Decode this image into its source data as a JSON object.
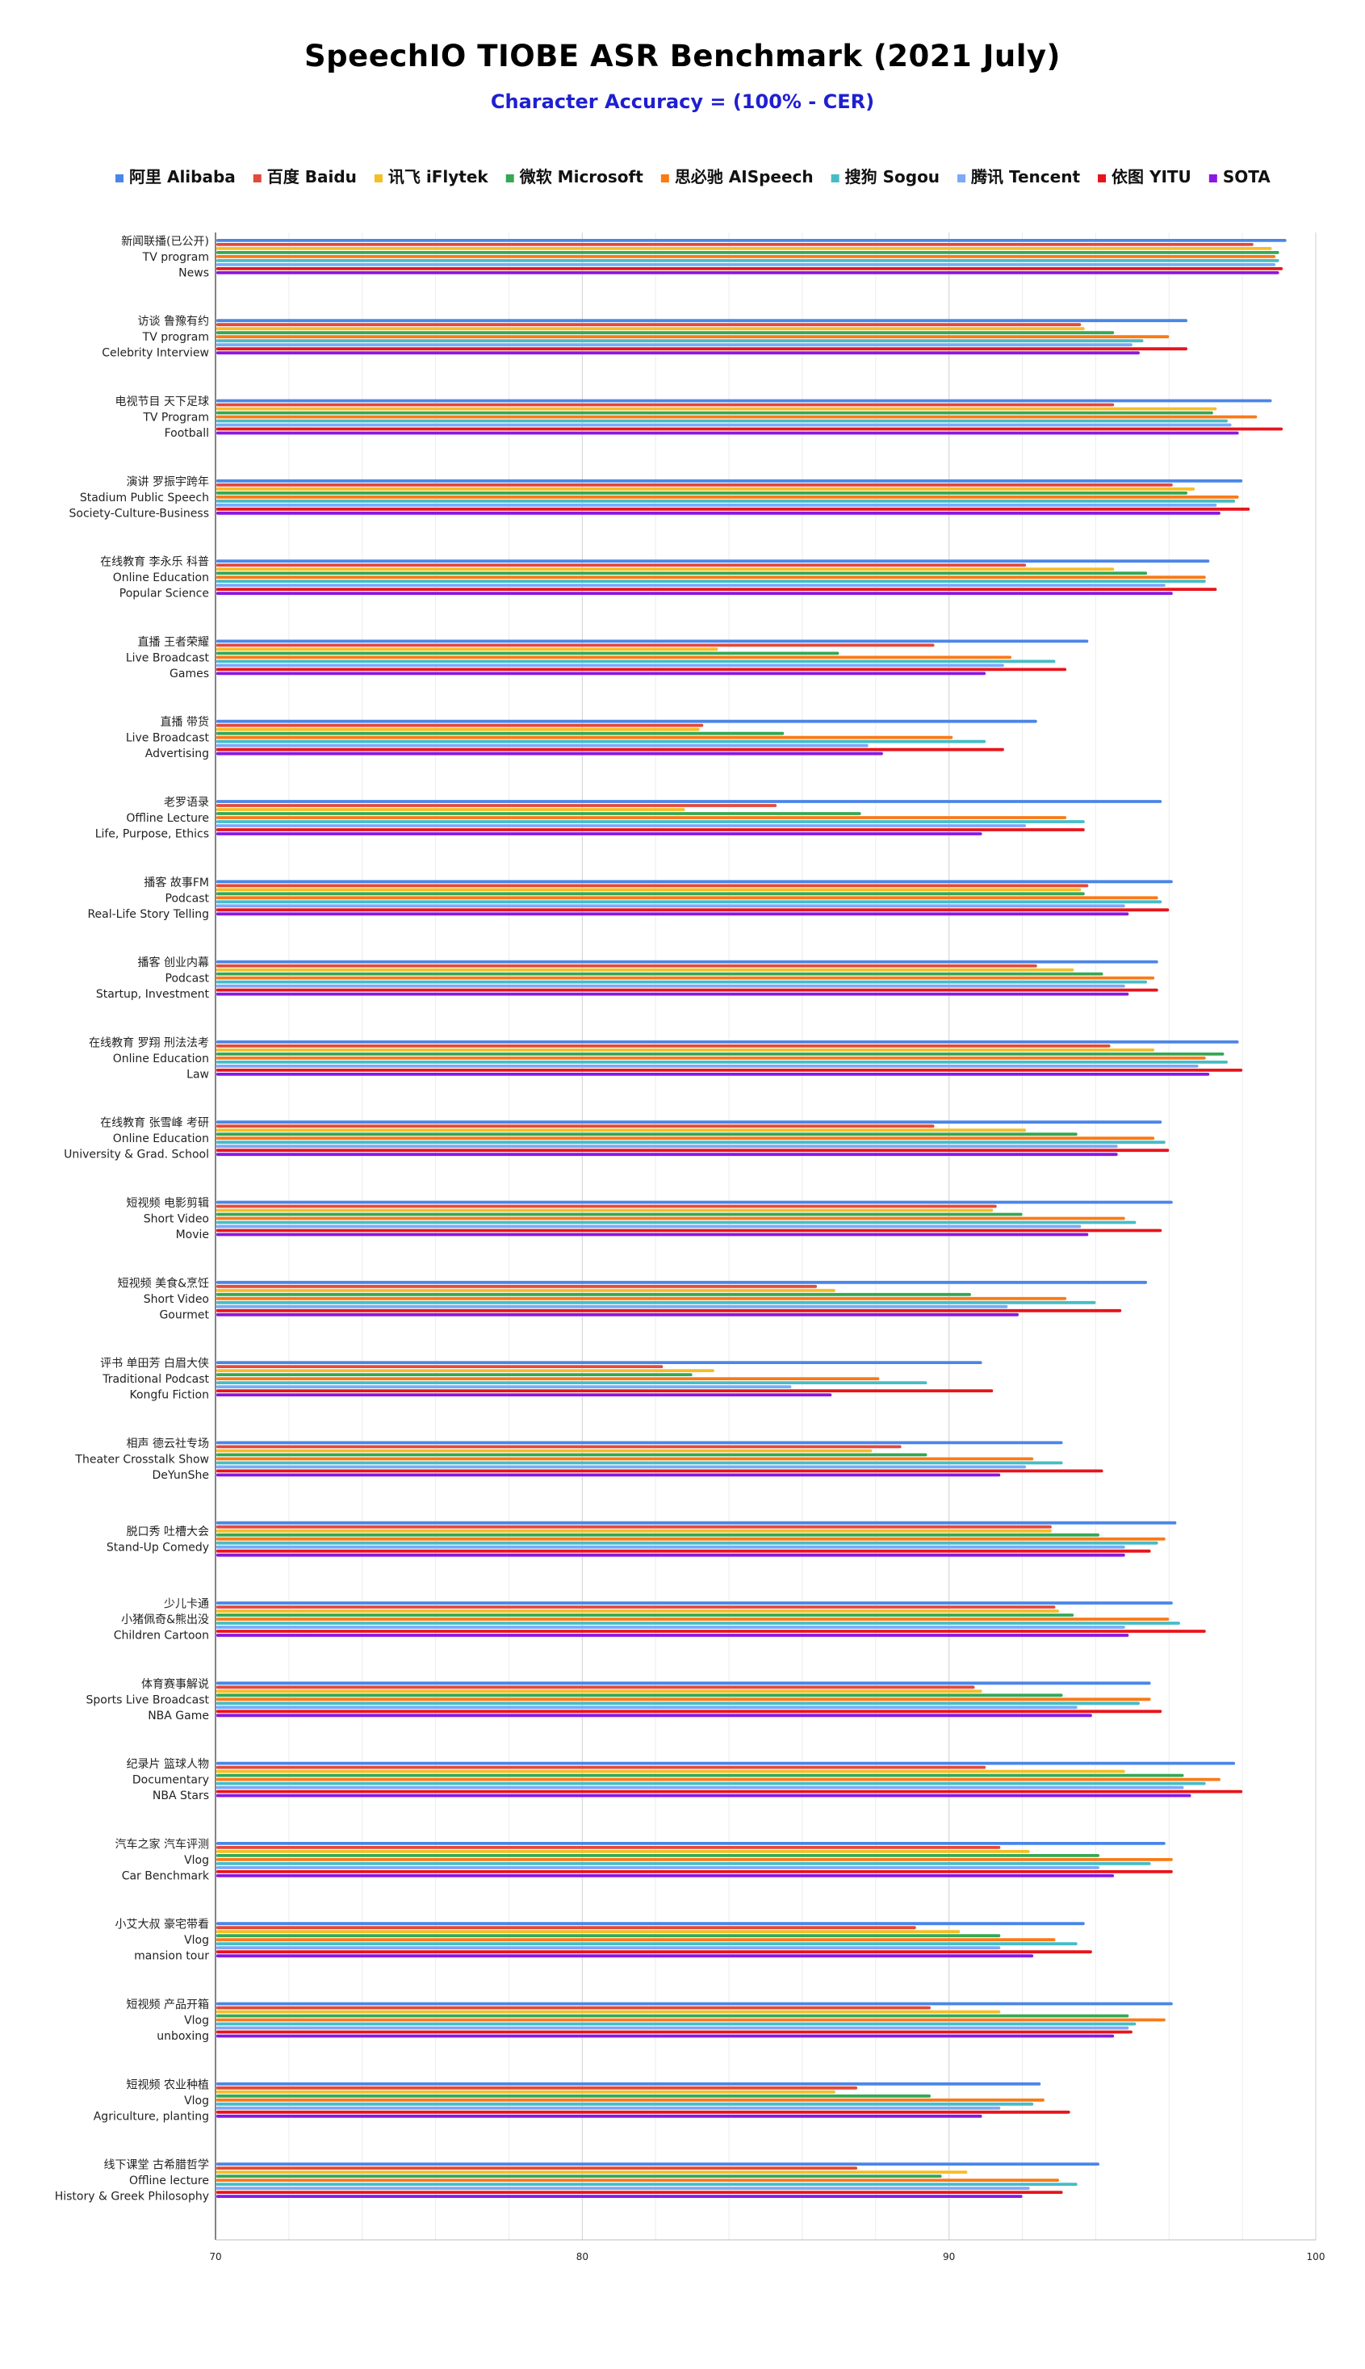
{
  "chart_data": {
    "type": "bar",
    "orientation": "horizontal",
    "title": "SpeechIO TIOBE ASR Benchmark (2021 July)",
    "subtitle": "Character Accuracy = (100% - CER)",
    "xlim": [
      70,
      100
    ],
    "xticks": [
      "70",
      "80",
      "90",
      "100"
    ],
    "grid": true,
    "legend_position": "top",
    "series": [
      {
        "name": "阿里 Alibaba",
        "color": "#4a86e8"
      },
      {
        "name": "百度 Baidu",
        "color": "#e24a3b"
      },
      {
        "name": "讯飞 iFlytek",
        "color": "#f6be26"
      },
      {
        "name": "微软 Microsoft",
        "color": "#34a853"
      },
      {
        "name": "思必驰 AISpeech",
        "color": "#fa7a16"
      },
      {
        "name": "搜狗 Sogou",
        "color": "#46bdc6"
      },
      {
        "name": "腾讯 Tencent",
        "color": "#7baaf7"
      },
      {
        "name": "依图 YITU",
        "color": "#e8141b"
      },
      {
        "name": "SOTA",
        "color": "#8a18e0"
      }
    ],
    "categories": [
      {
        "lines": [
          "新闻联播(已公开)",
          "TV program",
          "News"
        ],
        "values": [
          99.2,
          98.3,
          98.8,
          99.0,
          98.9,
          99.0,
          98.9,
          99.1,
          99.0
        ]
      },
      {
        "lines": [
          "访谈 鲁豫有约",
          "TV program",
          "Celebrity Interview"
        ],
        "values": [
          96.5,
          93.6,
          93.7,
          94.5,
          96.0,
          95.3,
          95.0,
          96.5,
          95.2
        ]
      },
      {
        "lines": [
          "电视节目 天下足球",
          "TV Program",
          "Football"
        ],
        "values": [
          98.8,
          94.5,
          97.3,
          97.2,
          98.4,
          97.6,
          97.7,
          99.1,
          97.9
        ]
      },
      {
        "lines": [
          "演讲 罗振宇跨年",
          "Stadium Public Speech",
          "Society-Culture-Business"
        ],
        "values": [
          98.0,
          96.1,
          96.7,
          96.5,
          97.9,
          97.8,
          97.3,
          98.2,
          97.4
        ]
      },
      {
        "lines": [
          "在线教育 李永乐 科普",
          "Online Education",
          "Popular Science"
        ],
        "values": [
          97.1,
          92.1,
          94.5,
          95.4,
          97.0,
          97.0,
          95.9,
          97.3,
          96.1
        ]
      },
      {
        "lines": [
          "直播 王者荣耀",
          "Live Broadcast",
          "Games"
        ],
        "values": [
          93.8,
          89.6,
          83.7,
          87.0,
          91.7,
          92.9,
          91.5,
          93.2,
          91.0
        ]
      },
      {
        "lines": [
          "直播 带货",
          "Live Broadcast",
          "Advertising"
        ],
        "values": [
          92.4,
          83.3,
          83.2,
          85.5,
          90.1,
          91.0,
          87.8,
          91.5,
          88.2
        ]
      },
      {
        "lines": [
          "老罗语录",
          "Offline Lecture",
          "Life, Purpose, Ethics"
        ],
        "values": [
          95.8,
          85.3,
          82.8,
          87.6,
          93.2,
          93.7,
          92.1,
          93.7,
          90.9
        ]
      },
      {
        "lines": [
          "播客 故事FM",
          "Podcast",
          "Real-Life Story Telling"
        ],
        "values": [
          96.1,
          93.8,
          93.6,
          93.7,
          95.7,
          95.8,
          94.8,
          96.0,
          94.9
        ]
      },
      {
        "lines": [
          "播客 创业内幕",
          "Podcast",
          "Startup, Investment"
        ],
        "values": [
          95.7,
          92.4,
          93.4,
          94.2,
          95.6,
          95.4,
          94.8,
          95.7,
          94.9
        ]
      },
      {
        "lines": [
          "在线教育 罗翔 刑法法考",
          "Online Education",
          "Law"
        ],
        "values": [
          97.9,
          94.4,
          95.6,
          97.5,
          97.0,
          97.6,
          96.8,
          98.0,
          97.1
        ]
      },
      {
        "lines": [
          "在线教育 张雪峰 考研",
          "Online Education",
          "University & Grad. School"
        ],
        "values": [
          95.8,
          89.6,
          92.1,
          93.5,
          95.6,
          95.9,
          94.6,
          96.0,
          94.6
        ]
      },
      {
        "lines": [
          "短视频 电影剪辑",
          "Short Video",
          "Movie"
        ],
        "values": [
          96.1,
          91.3,
          91.2,
          92.0,
          94.8,
          95.1,
          93.6,
          95.8,
          93.8
        ]
      },
      {
        "lines": [
          "短视频 美食&烹饪",
          "Short Video",
          "Gourmet"
        ],
        "values": [
          95.4,
          86.4,
          86.9,
          90.6,
          93.2,
          94.0,
          91.6,
          94.7,
          91.9
        ]
      },
      {
        "lines": [
          "评书 单田芳 白眉大侠",
          "Traditional Podcast",
          "Kongfu Fiction"
        ],
        "values": [
          90.9,
          82.2,
          83.6,
          83.0,
          88.1,
          89.4,
          85.7,
          91.2,
          86.8
        ]
      },
      {
        "lines": [
          "相声 德云社专场",
          "Theater Crosstalk Show",
          "DeYunShe"
        ],
        "values": [
          93.1,
          88.7,
          87.9,
          89.4,
          92.3,
          93.1,
          92.1,
          94.2,
          91.4
        ]
      },
      {
        "lines": [
          "脱口秀 吐槽大会",
          "Stand-Up Comedy"
        ],
        "values": [
          96.2,
          92.8,
          92.8,
          94.1,
          95.9,
          95.7,
          94.8,
          95.5,
          94.8
        ]
      },
      {
        "lines": [
          "少儿卡通",
          "小猪佩奇&熊出没",
          "Children Cartoon"
        ],
        "values": [
          96.1,
          92.9,
          93.0,
          93.4,
          96.0,
          96.3,
          94.8,
          97.0,
          94.9
        ]
      },
      {
        "lines": [
          "体育赛事解说",
          "Sports Live Broadcast",
          "NBA Game"
        ],
        "values": [
          95.5,
          90.7,
          90.9,
          93.1,
          95.5,
          95.2,
          93.5,
          95.8,
          93.9
        ]
      },
      {
        "lines": [
          "纪录片 篮球人物",
          "Documentary",
          "NBA Stars"
        ],
        "values": [
          97.8,
          91.0,
          94.8,
          96.4,
          97.4,
          97.0,
          96.4,
          98.0,
          96.6
        ]
      },
      {
        "lines": [
          "汽车之家 汽车评测",
          "Vlog",
          "Car Benchmark"
        ],
        "values": [
          95.9,
          91.4,
          92.2,
          94.1,
          96.1,
          95.5,
          94.1,
          96.1,
          94.5
        ]
      },
      {
        "lines": [
          "小艾大叔 豪宅带看",
          "Vlog",
          "mansion tour"
        ],
        "values": [
          93.7,
          89.1,
          90.3,
          91.4,
          92.9,
          93.5,
          91.4,
          93.9,
          92.3
        ]
      },
      {
        "lines": [
          "短视频 产品开箱",
          "Vlog",
          "unboxing"
        ],
        "values": [
          96.1,
          89.5,
          91.4,
          94.9,
          95.9,
          95.1,
          94.9,
          95.0,
          94.5
        ]
      },
      {
        "lines": [
          "短视频 农业种植",
          "Vlog",
          "Agriculture, planting"
        ],
        "values": [
          92.5,
          87.5,
          86.9,
          89.5,
          92.6,
          92.3,
          91.4,
          93.3,
          90.9
        ]
      },
      {
        "lines": [
          "线下课堂 古希腊哲学",
          "Offline lecture",
          "History & Greek Philosophy"
        ],
        "values": [
          94.1,
          87.5,
          90.5,
          89.8,
          93.0,
          93.5,
          92.2,
          93.1,
          92.0
        ]
      }
    ]
  }
}
